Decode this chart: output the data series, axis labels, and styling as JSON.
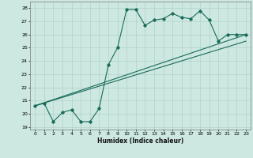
{
  "title": "",
  "xlabel": "Humidex (Indice chaleur)",
  "ylabel": "",
  "xlim": [
    -0.5,
    23.5
  ],
  "ylim": [
    18.8,
    28.5
  ],
  "yticks": [
    19,
    20,
    21,
    22,
    23,
    24,
    25,
    26,
    27,
    28
  ],
  "xticks": [
    0,
    1,
    2,
    3,
    4,
    5,
    6,
    7,
    8,
    9,
    10,
    11,
    12,
    13,
    14,
    15,
    16,
    17,
    18,
    19,
    20,
    21,
    22,
    23
  ],
  "background_color": "#cce8e0",
  "grid_color": "#aaccc4",
  "line_color": "#1a6b5a",
  "line1_x": [
    0,
    1,
    2,
    3,
    4,
    5,
    6,
    7,
    8,
    9,
    10,
    11,
    12,
    13,
    14,
    15,
    16,
    17,
    18,
    19,
    20,
    21,
    22,
    23
  ],
  "line1_y": [
    20.6,
    20.8,
    19.4,
    20.1,
    20.3,
    19.4,
    19.4,
    20.4,
    23.7,
    25.0,
    27.9,
    27.9,
    26.7,
    27.1,
    27.2,
    27.6,
    27.3,
    27.2,
    27.8,
    27.1,
    25.5,
    26.0,
    26.0,
    26.0
  ],
  "line2_x": [
    0,
    23
  ],
  "line2_y": [
    20.6,
    26.0
  ],
  "line3_x": [
    0,
    23
  ],
  "line3_y": [
    20.6,
    25.5
  ]
}
